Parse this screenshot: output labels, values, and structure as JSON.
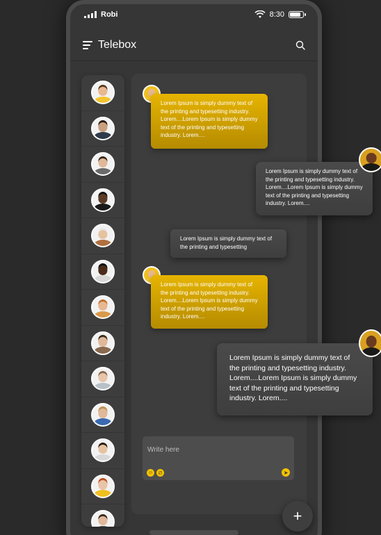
{
  "status_bar": {
    "carrier": "Robi",
    "time": "8:30"
  },
  "header": {
    "title": "Telebox",
    "menu_icon": "menu-icon",
    "search_icon": "search-icon"
  },
  "contacts": [
    {
      "name": "contact-1",
      "skin": "#e8b890",
      "shirt": "#f4c430",
      "hair": "#5a3a20"
    },
    {
      "name": "contact-2",
      "skin": "#c9a07f",
      "shirt": "#2f3a4a",
      "hair": "#2a1a10"
    },
    {
      "name": "contact-3",
      "skin": "#e0b89a",
      "shirt": "#6a6a6a",
      "hair": "#3a2a1a"
    },
    {
      "name": "contact-4",
      "skin": "#5a3a25",
      "shirt": "#1a1a1a",
      "hair": "#111111"
    },
    {
      "name": "contact-5",
      "skin": "#e6c2a0",
      "shirt": "#b07040",
      "hair": "#e8e8e8"
    },
    {
      "name": "contact-6",
      "skin": "#4a2c1a",
      "shirt": "#d8d8d8",
      "hair": "#111111"
    },
    {
      "name": "contact-7",
      "skin": "#e8b890",
      "shirt": "#d89a4a",
      "hair": "#c07030"
    },
    {
      "name": "contact-8",
      "skin": "#e0b89a",
      "shirt": "#8a6a50",
      "hair": "#3a2a1a"
    },
    {
      "name": "contact-9",
      "skin": "#e8c4a8",
      "shirt": "#b8c0c8",
      "hair": "#8a6a50"
    },
    {
      "name": "contact-10",
      "skin": "#e0b89a",
      "shirt": "#3a6ab0",
      "hair": "#c09050"
    },
    {
      "name": "contact-11",
      "skin": "#e6c2a0",
      "shirt": "#d8d8d8",
      "hair": "#2a1a10"
    },
    {
      "name": "contact-12",
      "skin": "#e8c4a8",
      "shirt": "#f0c020",
      "hair": "#c05020"
    },
    {
      "name": "contact-13",
      "skin": "#e0b89a",
      "shirt": "#555555",
      "hair": "#3a2a1a"
    }
  ],
  "messages": [
    {
      "text": "Lorem Ipsum is simply dummy text of the printing and typesetting industry. Lorem....Lorem Ipsum is simply dummy text of the printing and typesetting industry. Lorem...."
    },
    {
      "text": "Lorem Ipsum is simply dummy text of the printing and typesetting industry. Lorem....Lorem Ipsum is simply dummy text of the printing and typesetting industry. Lorem...."
    },
    {
      "text": "Lorem Ipsum is simply dummy text of the printing and typesetting"
    },
    {
      "text": "Lorem Ipsum is simply dummy text of the printing and typesetting industry. Lorem....Lorem Ipsum is simply dummy text of the printing and typesetting industry. Lorem...."
    },
    {
      "text": "Lorem Ipsum is simply dummy text of the printing and typesetting industry. Lorem....Lorem Ipsum is simply dummy text of the printing and typesetting industry. Lorem...."
    }
  ],
  "composer": {
    "placeholder": "Write here",
    "emoji_icon": "emoji-icon",
    "attach_icon": "attach-icon",
    "send_icon": "send-icon"
  },
  "fab_label": "+",
  "colors": {
    "accent": "#e6b400",
    "background": "#2a2a2a",
    "panel": "#3d3d3d"
  }
}
